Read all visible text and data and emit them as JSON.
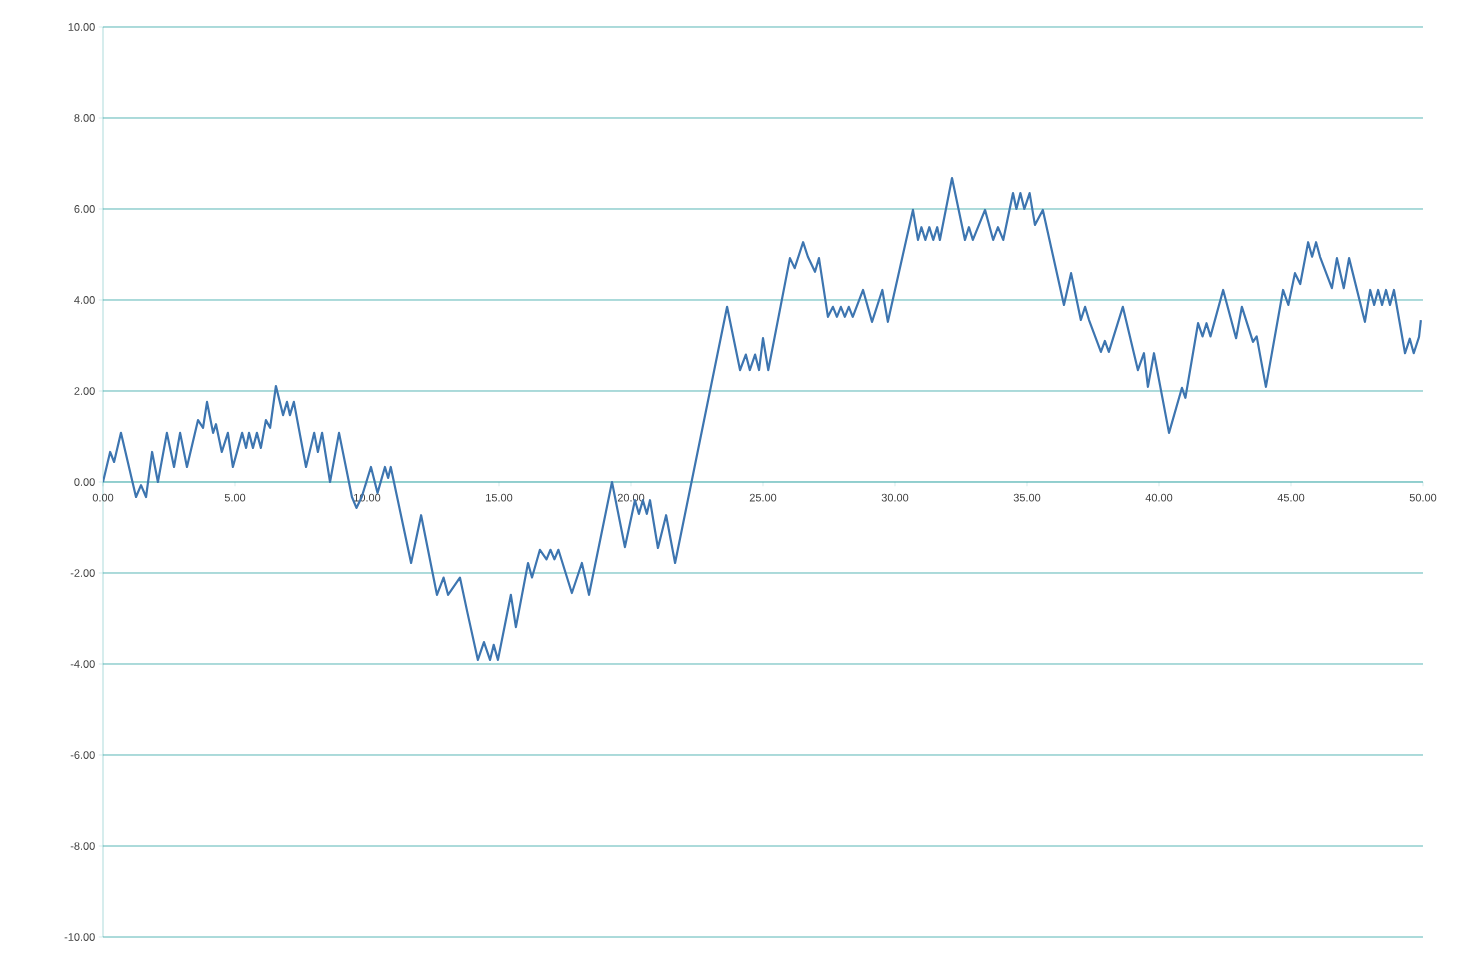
{
  "chart_data": {
    "type": "line",
    "color": "#3d75b0",
    "marker": "none",
    "line_style": "solid",
    "grid": "y",
    "xlim": [
      0,
      50
    ],
    "ylim": [
      -10,
      10
    ],
    "xticks": [
      {
        "value": 0,
        "label": "0.00"
      },
      {
        "value": 5,
        "label": "5.00"
      },
      {
        "value": 10,
        "label": "10.00"
      },
      {
        "value": 15,
        "label": "15.00"
      },
      {
        "value": 20,
        "label": "20.00"
      },
      {
        "value": 25,
        "label": "25.00"
      },
      {
        "value": 30,
        "label": "30.00"
      },
      {
        "value": 35,
        "label": "35.00"
      },
      {
        "value": 40,
        "label": "40.00"
      },
      {
        "value": 45,
        "label": "45.00"
      },
      {
        "value": 50,
        "label": "50.00"
      }
    ],
    "yticks": [
      {
        "value": -10,
        "label": "-10.00"
      },
      {
        "value": -8,
        "label": "-8.00"
      },
      {
        "value": -6,
        "label": "-6.00"
      },
      {
        "value": -4,
        "label": "-4.00"
      },
      {
        "value": -2,
        "label": "-2.00"
      },
      {
        "value": 0,
        "label": "0.00"
      },
      {
        "value": 2,
        "label": "2.00"
      },
      {
        "value": 4,
        "label": "4.00"
      },
      {
        "value": 6,
        "label": "6.00"
      },
      {
        "value": 8,
        "label": "8.00"
      },
      {
        "value": 10,
        "label": "10.00"
      }
    ],
    "x": [
      0,
      0.27,
      0.42,
      0.68,
      1.25,
      1.44,
      1.63,
      1.86,
      2.08,
      2.42,
      2.69,
      2.92,
      3.18,
      3.6,
      3.79,
      3.94,
      4.17,
      4.28,
      4.5,
      4.73,
      4.92,
      5.27,
      5.42,
      5.53,
      5.68,
      5.83,
      5.98,
      6.17,
      6.33,
      6.55,
      6.82,
      6.97,
      7.08,
      7.23,
      7.69,
      8.0,
      8.14,
      8.3,
      8.6,
      8.94,
      9.43,
      9.6,
      9.8,
      10.15,
      10.4,
      10.68,
      10.8,
      10.9,
      11.67,
      12.05,
      12.65,
      12.9,
      13.07,
      13.52,
      13.8,
      14.2,
      14.43,
      14.66,
      14.8,
      14.96,
      15.45,
      15.64,
      16.1,
      16.25,
      16.55,
      16.8,
      16.95,
      17.1,
      17.25,
      17.76,
      18.14,
      18.41,
      19.28,
      19.77,
      20.15,
      20.3,
      20.45,
      20.6,
      20.72,
      21.02,
      21.33,
      21.67,
      23.64,
      24.13,
      24.35,
      24.5,
      24.7,
      24.85,
      25.0,
      25.2,
      26.02,
      26.2,
      26.52,
      26.7,
      26.97,
      27.12,
      27.46,
      27.65,
      27.8,
      27.95,
      28.1,
      28.25,
      28.4,
      28.79,
      29.13,
      29.52,
      29.73,
      30.68,
      30.87,
      31.0,
      31.15,
      31.3,
      31.45,
      31.6,
      31.7,
      32.16,
      32.65,
      32.8,
      32.95,
      33.41,
      33.72,
      33.9,
      34.1,
      34.47,
      34.6,
      34.75,
      34.9,
      35.1,
      35.3,
      35.6,
      36.4,
      36.67,
      37.04,
      37.2,
      37.35,
      37.8,
      37.95,
      38.1,
      38.63,
      39.2,
      39.43,
      39.58,
      39.81,
      40.38,
      40.87,
      41.0,
      41.48,
      41.65,
      41.8,
      41.95,
      42.43,
      42.92,
      43.14,
      43.56,
      43.7,
      44.05,
      44.7,
      44.9,
      45.15,
      45.35,
      45.65,
      45.8,
      45.95,
      46.1,
      46.55,
      46.74,
      47.0,
      47.2,
      47.8,
      48.0,
      48.15,
      48.3,
      48.45,
      48.6,
      48.75,
      48.9,
      49.32,
      49.5,
      49.65,
      49.85,
      49.92
    ],
    "values": [
      0,
      0.66,
      0.44,
      1.08,
      -0.33,
      -0.07,
      -0.33,
      0.66,
      0,
      1.08,
      0.33,
      1.08,
      0.33,
      1.36,
      1.19,
      1.76,
      1.08,
      1.27,
      0.66,
      1.08,
      0.33,
      1.08,
      0.75,
      1.08,
      0.75,
      1.08,
      0.75,
      1.36,
      1.19,
      2.11,
      1.47,
      1.76,
      1.47,
      1.76,
      0.33,
      1.08,
      0.66,
      1.08,
      0,
      1.08,
      -0.33,
      -0.57,
      -0.33,
      0.33,
      -0.24,
      0.33,
      0.09,
      0.33,
      -1.78,
      -0.73,
      -2.48,
      -2.1,
      -2.48,
      -2.1,
      -2.86,
      -3.91,
      -3.52,
      -3.91,
      -3.58,
      -3.91,
      -2.48,
      -3.19,
      -1.78,
      -2.1,
      -1.49,
      -1.7,
      -1.49,
      -1.7,
      -1.49,
      -2.44,
      -1.78,
      -2.48,
      0,
      -1.43,
      -0.4,
      -0.7,
      -0.4,
      -0.7,
      -0.4,
      -1.45,
      -0.73,
      -1.78,
      3.85,
      2.46,
      2.8,
      2.46,
      2.8,
      2.46,
      3.16,
      2.46,
      4.92,
      4.7,
      5.27,
      4.95,
      4.62,
      4.92,
      3.63,
      3.85,
      3.63,
      3.85,
      3.63,
      3.85,
      3.63,
      4.22,
      3.52,
      4.22,
      3.52,
      5.98,
      5.32,
      5.6,
      5.32,
      5.6,
      5.32,
      5.6,
      5.32,
      6.68,
      5.32,
      5.6,
      5.32,
      5.98,
      5.32,
      5.6,
      5.32,
      6.35,
      6.0,
      6.35,
      6.0,
      6.35,
      5.65,
      5.98,
      3.89,
      4.59,
      3.56,
      3.85,
      3.56,
      2.86,
      3.1,
      2.86,
      3.85,
      2.46,
      2.83,
      2.09,
      2.83,
      1.08,
      2.07,
      1.85,
      3.49,
      3.2,
      3.49,
      3.2,
      4.22,
      3.16,
      3.85,
      3.08,
      3.2,
      2.09,
      4.22,
      3.89,
      4.59,
      4.35,
      5.27,
      4.95,
      5.27,
      4.95,
      4.26,
      4.92,
      4.26,
      4.92,
      3.52,
      4.22,
      3.89,
      4.22,
      3.89,
      4.22,
      3.89,
      4.22,
      2.83,
      3.15,
      2.83,
      3.19,
      3.56
    ]
  }
}
